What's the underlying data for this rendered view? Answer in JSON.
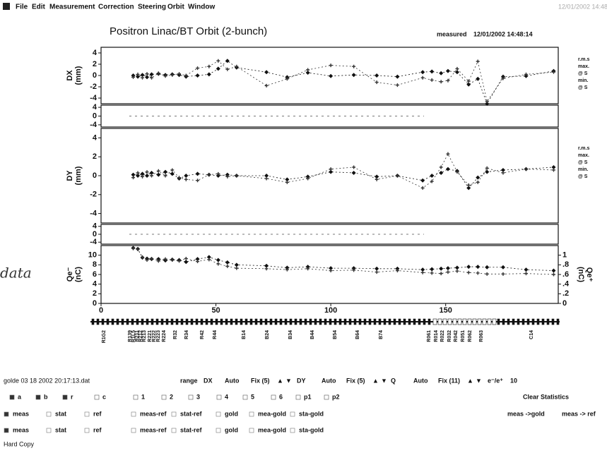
{
  "menu": [
    "File",
    "Edit",
    "Measurement",
    "Correction",
    "Steering",
    "Orbit",
    "Window"
  ],
  "header": {
    "title": "Positron Linac/BT  Orbit (2-bunch)",
    "status": "measured",
    "timestamp": "12/01/2002 14:48:14",
    "corner": "12/01/2002 14:48"
  },
  "annotation": "data",
  "chart_data": [
    {
      "type": "line",
      "ylabel": "DX",
      "yunit": "(mm)",
      "xlim": [
        0,
        199
      ],
      "ylim": [
        -5,
        5
      ],
      "yticks": [
        -4,
        -2,
        0,
        2,
        4
      ],
      "x": [
        14,
        16,
        18,
        20,
        22,
        25,
        28,
        31,
        34,
        37,
        42,
        47,
        51,
        55,
        59,
        72,
        81,
        90,
        100,
        110,
        120,
        129,
        140,
        144,
        148,
        151,
        155,
        160,
        164,
        168,
        175,
        185,
        197
      ],
      "series": [
        {
          "color": "#111111",
          "marker": "diamond",
          "values": [
            0,
            -0.2,
            0.1,
            -0.3,
            0.2,
            0.3,
            0.1,
            0.2,
            0.1,
            -0.2,
            0,
            0.2,
            1.2,
            2.6,
            1.4,
            0.6,
            -0.3,
            0.5,
            -0.1,
            0.1,
            0,
            -0.2,
            0.6,
            0.7,
            0.4,
            0.8,
            0.6,
            -1.6,
            -0.6,
            -5,
            -0.2,
            -0.1,
            0.8
          ]
        },
        {
          "color": "#333333",
          "marker": "plus",
          "values": [
            -0.3,
            0.2,
            -0.4,
            0.3,
            -0.4,
            0.4,
            -0.1,
            0.1,
            0.3,
            0,
            1.3,
            1.6,
            2.6,
            1.1,
            1.6,
            -1.8,
            -0.6,
            1.0,
            1.8,
            1.6,
            -1.2,
            -1.7,
            -0.4,
            -0.8,
            -1.1,
            -0.9,
            1.2,
            -1.0,
            2.5,
            -4.6,
            -0.5,
            0.2,
            0.6
          ]
        }
      ]
    },
    {
      "type": "line",
      "ylim": [
        -5,
        5
      ],
      "yticks": [
        -4,
        0,
        4
      ]
    },
    {
      "type": "line",
      "ylabel": "DY",
      "yunit": "(mm)",
      "xlim": [
        0,
        199
      ],
      "ylim": [
        -5,
        5
      ],
      "yticks": [
        -4,
        -2,
        0,
        2,
        4
      ],
      "x": [
        14,
        16,
        18,
        20,
        22,
        25,
        28,
        31,
        34,
        37,
        42,
        47,
        51,
        55,
        59,
        72,
        81,
        90,
        100,
        110,
        120,
        129,
        140,
        144,
        148,
        151,
        155,
        160,
        164,
        168,
        175,
        185,
        197
      ],
      "series": [
        {
          "color": "#111111",
          "marker": "diamond",
          "values": [
            0.1,
            0,
            0.2,
            0,
            0.3,
            0.1,
            0.4,
            0.2,
            -0.3,
            0,
            0.2,
            0.1,
            0,
            0.1,
            0,
            0,
            -0.4,
            -0.1,
            0.4,
            0.3,
            -0.1,
            0,
            -0.5,
            0,
            0.3,
            0.7,
            0.5,
            -1.3,
            -0.2,
            0.4,
            0.6,
            0.7,
            0.9
          ]
        },
        {
          "color": "#333333",
          "marker": "plus",
          "values": [
            -0.2,
            0.3,
            -0.1,
            0.4,
            0,
            0.5,
            0,
            0.6,
            -0.2,
            -0.4,
            -0.5,
            0.1,
            0.2,
            -0.1,
            0,
            -0.3,
            -0.7,
            -0.3,
            0.7,
            0.9,
            -0.4,
            0,
            -1.3,
            -0.6,
            0.9,
            2.3,
            0.4,
            -1.0,
            -0.7,
            0.8,
            0.3,
            0.7,
            0.6
          ]
        }
      ]
    },
    {
      "type": "line",
      "ylim": [
        -5,
        5
      ],
      "yticks": [
        -4,
        0,
        4
      ]
    },
    {
      "type": "line",
      "ylabel": "Qe⁻",
      "yunit": "(nC)",
      "y2label": "Qe⁺",
      "y2unit": "(nC)",
      "xlim": [
        0,
        199
      ],
      "ylim": [
        0,
        12
      ],
      "yticks": [
        0,
        2,
        4,
        6,
        8,
        10
      ],
      "y2lim": [
        0,
        1.2
      ],
      "y2ticks": [
        0,
        {
          "value": 0.2,
          "label": ".2"
        },
        {
          "value": 0.4,
          "label": ".4"
        },
        {
          "value": 0.6,
          "label": ".6"
        },
        {
          "value": 0.8,
          "label": ".8"
        },
        1
      ],
      "xticks": [
        0,
        50,
        100,
        150
      ],
      "x": [
        14,
        16,
        18,
        20,
        22,
        25,
        28,
        31,
        34,
        37,
        42,
        47,
        51,
        55,
        59,
        72,
        81,
        90,
        100,
        110,
        120,
        129,
        140,
        144,
        148,
        151,
        155,
        160,
        164,
        168,
        175,
        185,
        197
      ],
      "series": [
        {
          "color": "#111111",
          "marker": "diamond",
          "values": [
            11.5,
            11.3,
            9.5,
            9.3,
            9.2,
            9.2,
            8.9,
            9.1,
            9.0,
            8.6,
            9.2,
            9.6,
            9.0,
            8.5,
            8.0,
            7.8,
            7.4,
            7.6,
            7.3,
            7.3,
            7.2,
            7.2,
            7.0,
            7.1,
            7.2,
            7.3,
            7.4,
            7.6,
            7.6,
            7.5,
            7.5,
            7.0,
            6.8
          ]
        },
        {
          "color": "#333333",
          "marker": "plus",
          "values": [
            11.4,
            11.2,
            9.6,
            9.0,
            9.3,
            8.8,
            9.2,
            9.0,
            8.8,
            9.3,
            8.7,
            9.1,
            8.2,
            7.7,
            7.3,
            7.2,
            7.0,
            7.2,
            6.8,
            6.9,
            6.5,
            6.8,
            6.4,
            6.3,
            6.2,
            6.5,
            6.7,
            6.4,
            6.3,
            6.1,
            6.1,
            6.2,
            6.0
          ]
        }
      ]
    }
  ],
  "stats": [
    [
      "r.m.s",
      "max.",
      "@ S",
      "min.",
      "@ S"
    ],
    [
      "r.m.s",
      "max.",
      "@ S",
      "min.",
      "@ S"
    ]
  ],
  "beamline": {
    "elements": [
      "R1G2",
      "R139",
      "R1L5",
      "R211",
      "R212",
      "R213",
      "R221",
      "R222",
      "R223",
      "R224",
      "R32",
      "R34",
      "R42",
      "R44",
      "B14",
      "B24",
      "B34",
      "B44",
      "B54",
      "B64",
      "B74",
      "R061",
      "R014",
      "R022",
      "R032",
      "R042",
      "R051",
      "R062",
      "R063",
      "C14"
    ]
  },
  "controls": {
    "file": "golde 03 18 2002 20:17:13.dat",
    "range": [
      "range",
      "DX",
      "Auto",
      "Fix (5)",
      "▲",
      "▼",
      "DY",
      "Auto",
      "Fix (5)",
      "▲",
      "▼",
      "Q",
      "Auto",
      "Fix (11)",
      "▲",
      "▼",
      "e⁻/e⁺",
      "10"
    ],
    "select": [
      "a",
      "b",
      "r",
      "c",
      "1",
      "2",
      "3",
      "4",
      "5",
      "6",
      "p1",
      "p2"
    ],
    "clear": "Clear Statistics",
    "row_a": [
      "meas",
      "stat",
      "ref",
      "meas-ref",
      "stat-ref",
      "gold",
      "mea-gold",
      "sta-gold"
    ],
    "actions": [
      "meas ->gold",
      "meas -> ref"
    ],
    "row_b": [
      "meas",
      "stat",
      "ref",
      "meas-ref",
      "stat-ref",
      "gold",
      "mea-gold",
      "sta-gold"
    ],
    "hard_copy": "Hard Copy"
  }
}
